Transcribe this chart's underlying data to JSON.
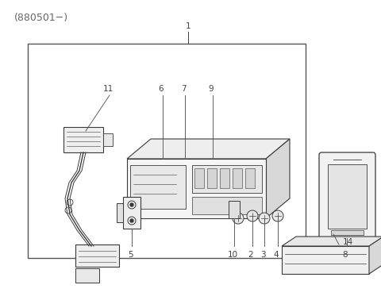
{
  "title": "(880501−)",
  "bg_color": "#ffffff",
  "line_color": "#3a3a3a",
  "label_color": "#444444",
  "title_color": "#666666",
  "fig_width": 4.8,
  "fig_height": 3.88,
  "dpi": 100
}
